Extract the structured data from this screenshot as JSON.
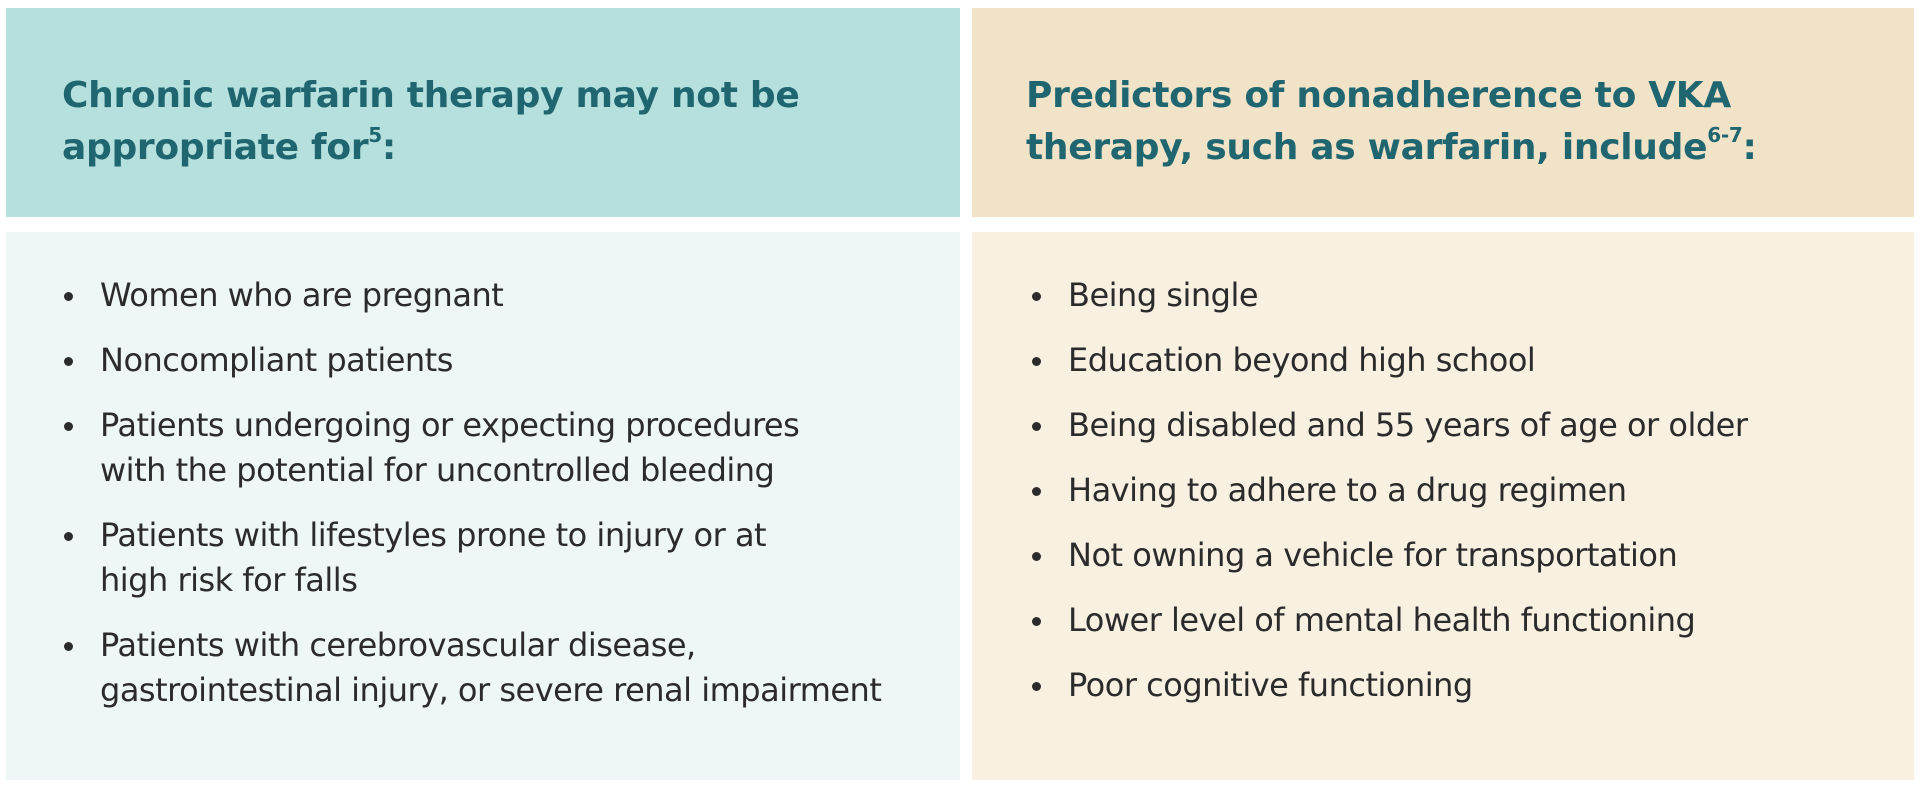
{
  "left_panel": {
    "heading_text": "Chronic warfarin therapy may not be appropriate for",
    "heading_ref": "5",
    "heading_suffix": ":",
    "items": [
      [
        "Women who are pregnant"
      ],
      [
        "Noncompliant patients"
      ],
      [
        "Patients undergoing or expecting procedures",
        "with the potential for uncontrolled bleeding"
      ],
      [
        "Patients with lifestyles prone to injury or at",
        "high risk for falls"
      ],
      [
        "Patients with cerebrovascular disease,",
        "gastrointestinal injury, or severe renal impairment"
      ]
    ]
  },
  "right_panel": {
    "heading_text": "Predictors of nonadherence to VKA therapy, such as warfarin, include",
    "heading_ref": "6-7",
    "heading_suffix": ":",
    "items": [
      [
        "Being single"
      ],
      [
        "Education beyond high school"
      ],
      [
        "Being disabled and 55 years of age or older"
      ],
      [
        "Having to adhere to a drug regimen"
      ],
      [
        "Not owning a vehicle for transportation"
      ],
      [
        "Lower level of mental health functioning"
      ],
      [
        "Poor cognitive functioning"
      ]
    ]
  },
  "colors": {
    "left_header_bg": "#b5e0dd",
    "left_body_bg": "#eef7f5",
    "right_header_bg": "#f1e3c8",
    "right_body_bg": "#f8f0e1",
    "heading_text": "#1f6670",
    "body_text": "#2b2b2b"
  },
  "icons": {
    "list_bullet": "bullet-dot-icon"
  }
}
